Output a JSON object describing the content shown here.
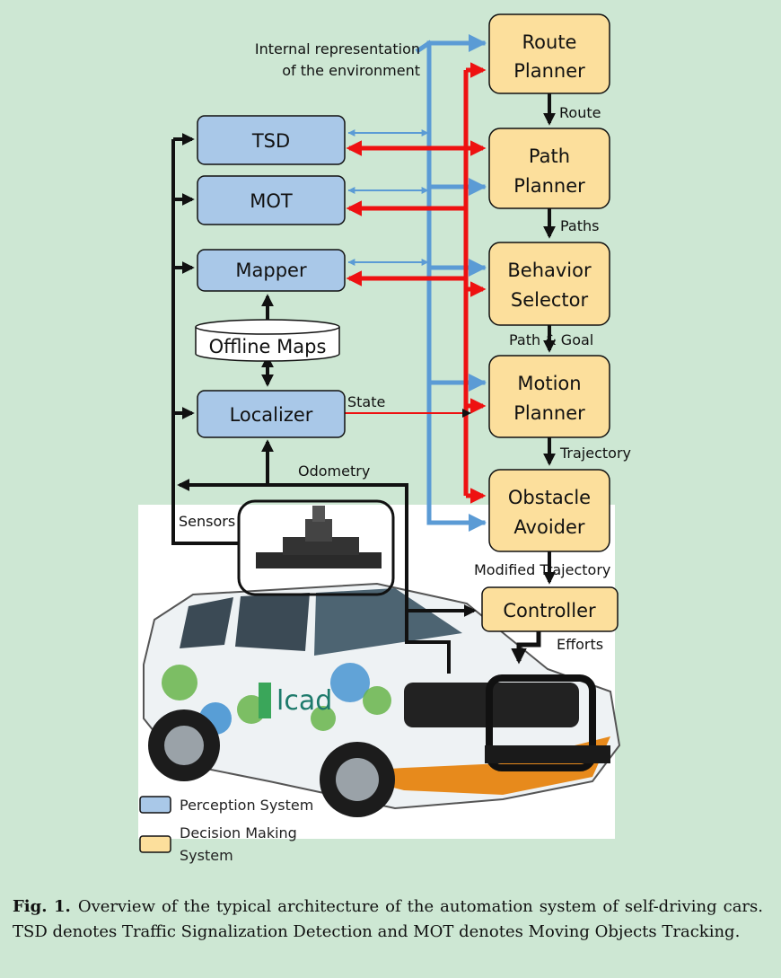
{
  "colors": {
    "perception": "#a9c8e8",
    "decision": "#fcdf9c",
    "blue_arrow": "#5b9bd5",
    "red_arrow": "#ee1111",
    "background": "#cde7d3"
  },
  "annotation": {
    "line1": "Internal representation",
    "line2": "of the environment"
  },
  "perception_nodes": {
    "tsd": "TSD",
    "mot": "MOT",
    "mapper": "Mapper",
    "offline_maps": "Offline Maps",
    "localizer": "Localizer"
  },
  "decision_nodes": {
    "route_planner": [
      "Route",
      "Planner"
    ],
    "path_planner": [
      "Path",
      "Planner"
    ],
    "behavior_selector": [
      "Behavior",
      "Selector"
    ],
    "motion_planner": [
      "Motion",
      "Planner"
    ],
    "obstacle_avoider": [
      "Obstacle",
      "Avoider"
    ],
    "controller": "Controller"
  },
  "edge_labels": {
    "route": "Route",
    "paths": "Paths",
    "path_goal": "Path & Goal",
    "trajectory": "Trajectory",
    "modified_trajectory": "Modified Trajectory",
    "efforts": "Efforts",
    "state": "State",
    "odometry": "Odometry",
    "sensors": "Sensors"
  },
  "car_logo_text": "lcad",
  "legend": {
    "perception": "Perception System",
    "decision_line1": "Decision Making",
    "decision_line2": "System"
  },
  "caption": {
    "label": "Fig. 1.",
    "text": "Overview of the typical architecture of the automation system of self-driving cars. TSD denotes Traffic Signalization Detection and MOT denotes Moving Objects Tracking."
  }
}
